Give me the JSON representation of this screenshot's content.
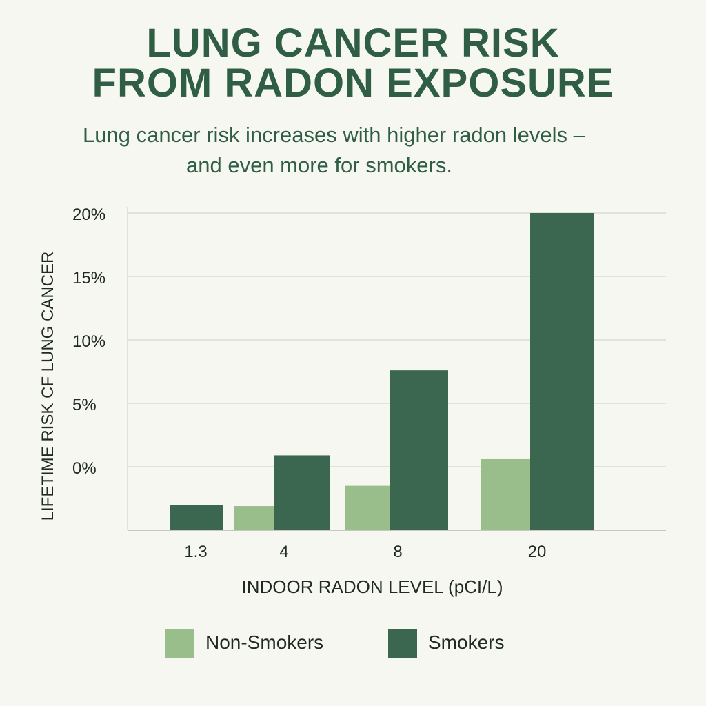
{
  "title_lines": [
    "LUNG CANCER RISK",
    "FROM RADON EXPOSURE"
  ],
  "subtitle_lines": [
    "Lung cancer risk increases with higher radon levels –",
    "and even more for smokers."
  ],
  "colors": {
    "background": "#f7f7f1",
    "title": "#2f5e45",
    "non_smokers": "#9abd8c",
    "smokers": "#3b6650",
    "grid": "#dcdcd6"
  },
  "chart_data": {
    "type": "bar",
    "title": "LUNG CANCER RISK FROM RADON EXPOSURE",
    "subtitle": "Lung cancer risk increases with higher radon levels – and even more for smokers.",
    "xlabel": "INDOOR RADON LEVEL (pCI/L)",
    "ylabel": "LIFETIME RISK CF LUNG CANCER",
    "categories": [
      "1.3",
      "4",
      "8",
      "20"
    ],
    "ytick_labels": [
      "20%",
      "15%",
      "10%",
      "5%",
      "0%"
    ],
    "yticks": [
      20,
      15,
      10,
      5,
      0
    ],
    "ylim": [
      -5,
      20
    ],
    "grid": true,
    "legend_position": "bottom",
    "series": [
      {
        "name": "Non-Smokers",
        "values": [
          null,
          -3.1,
          -1.5,
          0.6
        ]
      },
      {
        "name": "Smokers",
        "values": [
          -3.0,
          0.9,
          7.6,
          20
        ]
      }
    ]
  }
}
